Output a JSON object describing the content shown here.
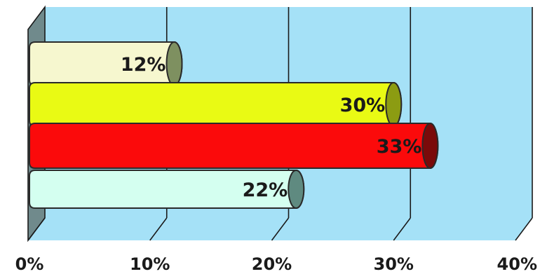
{
  "chart_data": {
    "type": "bar",
    "orientation": "horizontal",
    "style": "3d-cylinder",
    "categories": [
      "",
      "",
      "",
      ""
    ],
    "values": [
      12,
      30,
      33,
      22
    ],
    "data_labels": [
      "12%",
      "30%",
      "33%",
      "22%"
    ],
    "xlim": [
      0,
      40
    ],
    "x_ticks": [
      0,
      10,
      20,
      30,
      40
    ],
    "x_tick_labels": [
      "0%",
      "10%",
      "20%",
      "30%",
      "40%"
    ],
    "grid": true,
    "legend": "none",
    "title": "",
    "xlabel": "",
    "ylabel": "",
    "colors": {
      "wall": "#a5e1f7",
      "floor": "#a5e1f7",
      "left_wall": "#708a8c",
      "bars": [
        "#f6f7cf",
        "#e9fa14",
        "#fb0a0b",
        "#d4fff0"
      ],
      "bar_caps": [
        "#7e9060",
        "#8c9c12",
        "#7a0a0a",
        "#5f8a80"
      ]
    }
  }
}
